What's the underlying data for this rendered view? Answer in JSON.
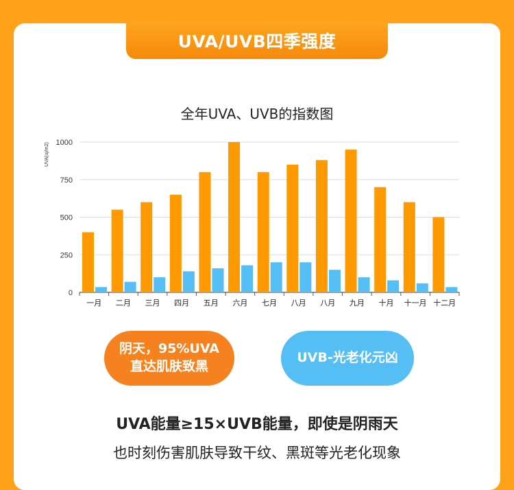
{
  "header": {
    "title": "UVA/UVB四季强度"
  },
  "chart_data": {
    "type": "bar",
    "title": "全年UVA、UVB的指数图",
    "ylabel": "UVA(uj/m2)",
    "xlabel": "",
    "ylim": [
      0,
      1000
    ],
    "yticks": [
      0,
      250,
      500,
      750,
      1000
    ],
    "grid": true,
    "categories": [
      "一月",
      "二月",
      "三月",
      "四月",
      "五月",
      "六月",
      "七月",
      "八月",
      "八月",
      "九月",
      "十月",
      "十一月",
      "十二月"
    ],
    "series": [
      {
        "values": [
          400,
          550,
          600,
          650,
          800,
          1000,
          800,
          850,
          880,
          950,
          700,
          600,
          500
        ],
        "color": "#FF9900"
      },
      {
        "values": [
          35,
          70,
          100,
          140,
          160,
          180,
          200,
          200,
          150,
          100,
          80,
          60,
          35
        ],
        "color": "#55BEF5"
      }
    ]
  },
  "bubbles": {
    "left_line1": "阴天，95%UVA",
    "left_line2": "直达肌肤致黑",
    "right": "UVB-光老化元凶"
  },
  "captions": {
    "line1": "UVA能量≥15×UVB能量，即使是阴雨天",
    "line2": "也时刻伤害肌肤导致干纹、黑斑等光老化现象"
  },
  "colors": {
    "background": "#FFA21A",
    "uva": "#FF9900",
    "uvb": "#55BEF5"
  }
}
